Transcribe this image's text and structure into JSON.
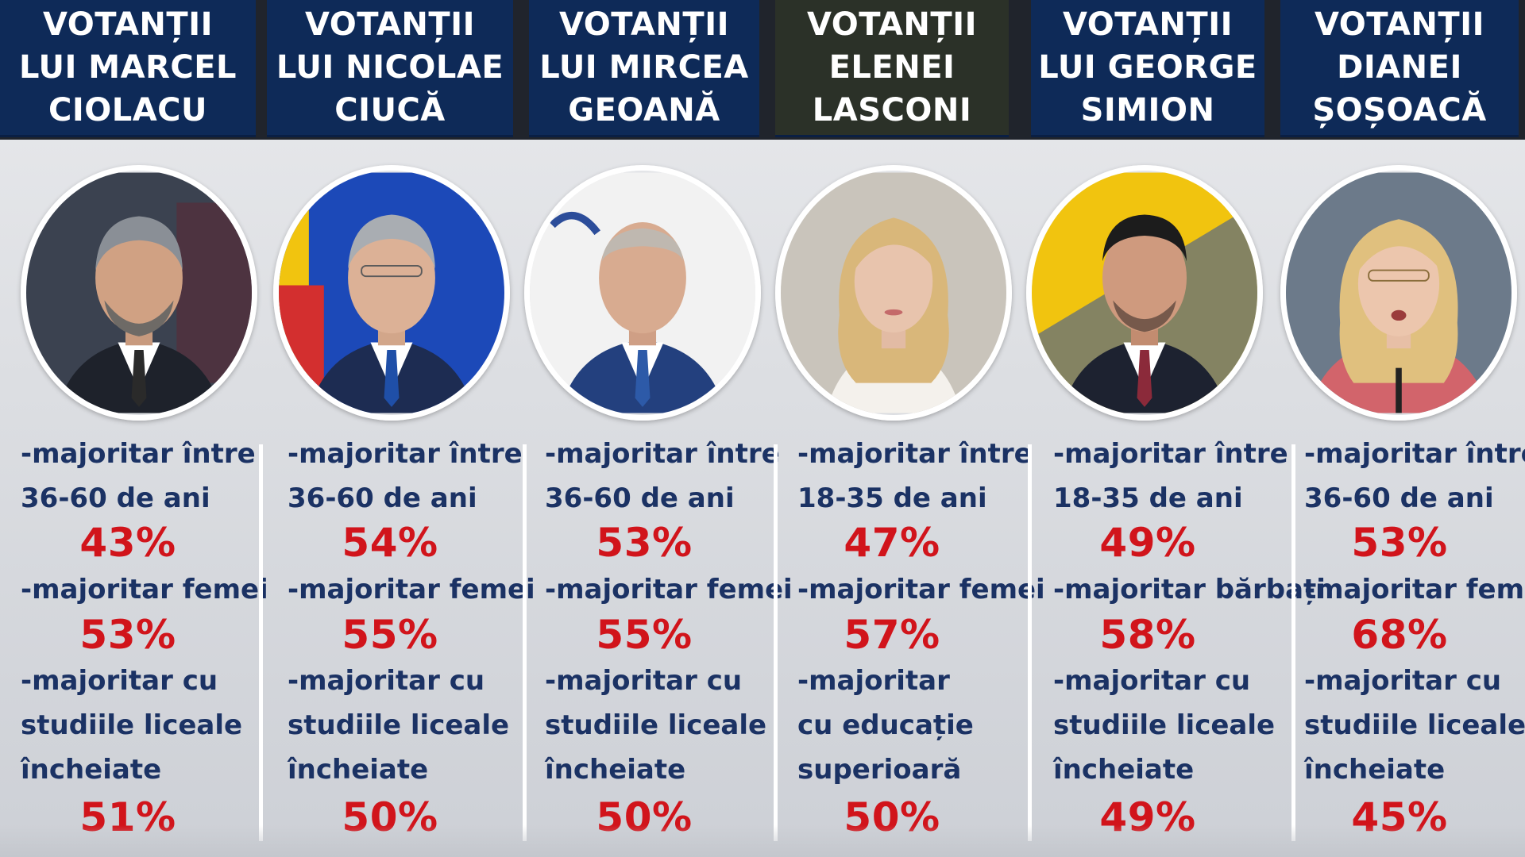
{
  "columns": [
    {
      "header": [
        "VOTANȚII",
        "LUI MARCEL",
        "CIOLACU"
      ],
      "age_label": [
        "-majoritar între",
        "36-60 de ani"
      ],
      "age_pct": "43%",
      "gender_label": "-majoritar femei",
      "gender_pct": "53%",
      "edu_label": [
        "-majoritar cu",
        "studiile liceale",
        "încheiate"
      ],
      "edu_pct": "51%",
      "portrait_bg": "#3b4250"
    },
    {
      "header": [
        "VOTANȚII",
        "LUI NICOLAE",
        "CIUCĂ"
      ],
      "age_label": [
        "-majoritar între",
        "36-60 de ani"
      ],
      "age_pct": "54%",
      "gender_label": "-majoritar femei",
      "gender_pct": "55%",
      "edu_label": [
        "-majoritar cu",
        "studiile liceale",
        "încheiate"
      ],
      "edu_pct": "50%",
      "portrait_bg": "#1c49b8"
    },
    {
      "header": [
        "VOTANȚII",
        "LUI MIRCEA",
        "GEOANĂ"
      ],
      "age_label": [
        "-majoritar între",
        "36-60 de ani"
      ],
      "age_pct": "53%",
      "gender_label": "-majoritar femei",
      "gender_pct": "55%",
      "edu_label": [
        "-majoritar cu",
        "studiile liceale",
        "încheiate"
      ],
      "edu_pct": "50%",
      "portrait_bg": "#f2f2f2"
    },
    {
      "header": [
        "VOTANȚII",
        "ELENEI",
        "LASCONI"
      ],
      "age_label": [
        "-majoritar între",
        "18-35 de ani"
      ],
      "age_pct": "47%",
      "gender_label": "-majoritar femei",
      "gender_pct": "57%",
      "edu_label": [
        "-majoritar",
        "cu educație",
        "superioară"
      ],
      "edu_pct": "50%",
      "portrait_bg": "#c9c4bb"
    },
    {
      "header": [
        "VOTANȚII",
        "LUI GEORGE",
        "SIMION"
      ],
      "age_label": [
        "-majoritar între",
        "18-35 de ani"
      ],
      "age_pct": "49%",
      "gender_label": "-majoritar bărbați",
      "gender_pct": "58%",
      "edu_label": [
        "-majoritar cu",
        "studiile liceale",
        "încheiate"
      ],
      "edu_pct": "49%",
      "portrait_bg": "#f1c40f"
    },
    {
      "header": [
        "VOTANȚII",
        "DIANEI",
        "ȘOȘOACĂ"
      ],
      "age_label": [
        "-majoritar între",
        "36-60 de ani"
      ],
      "age_pct": "53%",
      "gender_label": "-majoritar femei",
      "gender_pct": "68%",
      "edu_label": [
        "-majoritar cu",
        "studiile liceale",
        "încheiate"
      ],
      "edu_pct": "45%",
      "portrait_bg": "#6c7a8a"
    }
  ]
}
